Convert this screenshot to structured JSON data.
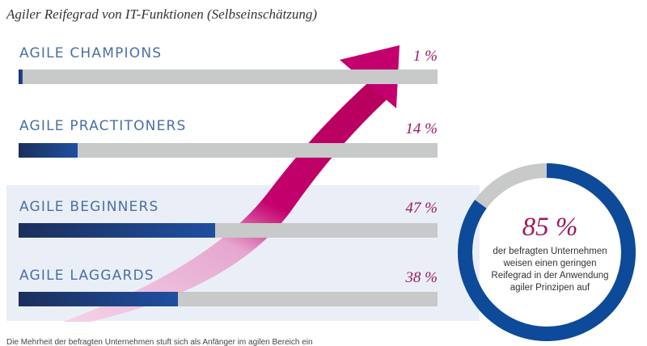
{
  "chart_data": {
    "type": "bar",
    "title": "Agiler Reifegrad von IT-Funktionen (Selbseinschätzung)",
    "orientation": "horizontal",
    "xlim": [
      0,
      100
    ],
    "categories": [
      "AGILE CHAMPIONS",
      "AGILE PRACTITONERS",
      "AGILE BEGINNERS",
      "AGILE LAGGARDS"
    ],
    "values": [
      1,
      14,
      47,
      38
    ],
    "value_labels": [
      "1 %",
      "14 %",
      "47 %",
      "38 %"
    ],
    "highlighted_categories": [
      "AGILE BEGINNERS",
      "AGILE LAGGARDS"
    ],
    "summary": {
      "type": "pie",
      "value": 85,
      "label": "85 %",
      "caption": "der befragten Unternehmen weisen einen geringen Reifegrad in der Anwendung agiler Prinzipen auf"
    },
    "footnote": "Die Mehrheit der befragten Unternehmen stuft sich als Anfänger im agilen Bereich ein"
  },
  "colors": {
    "label": "#4a6fa5",
    "percent": "#9b1a5e",
    "track": "#c8c9c9",
    "fill_dark": "#1b2f5c",
    "fill_light": "#1f4fa0",
    "arrow": "#c4006e",
    "arrow_light": "#e6a7cf",
    "panel": "#eaeff7",
    "donut_blue": "#0d4a99",
    "donut_grey": "#c8c9c9"
  }
}
